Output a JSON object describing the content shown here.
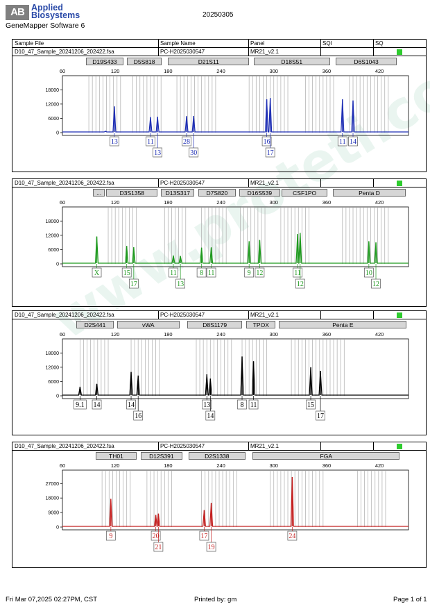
{
  "header": {
    "logo_mark": "AB",
    "logo_line1": "Applied",
    "logo_line2": "Biosystems",
    "software": "GeneMapper Software 6",
    "date": "20250305"
  },
  "columns": [
    "Sample File",
    "Sample Name",
    "Panel",
    "SQI",
    "SQ"
  ],
  "watermark": "www.proteti.com.cn",
  "footer": {
    "printed_at": "Fri Mar 07,2025 02:27PM, CST",
    "printed_by": "Printed by: gm",
    "page": "Page 1 of 1"
  },
  "colors": {
    "blue": "#1f2fb4",
    "green": "#1f9a1f",
    "black": "#000000",
    "red": "#c42020",
    "sq": "#2ecc2e"
  },
  "panels": [
    {
      "sample_file": "D10_47_Sample_20241206_202422.fsa",
      "sample_name": "PC-H2025030547",
      "panel": "MR21_v2.1",
      "color": "#1f2fb4",
      "show_sq": true,
      "markers": [
        {
          "name": "D19S433",
          "start": 87,
          "end": 129
        },
        {
          "name": "D5S818",
          "start": 133,
          "end": 173
        },
        {
          "name": "D21S11",
          "start": 180,
          "end": 272
        },
        {
          "name": "D18S51",
          "start": 277,
          "end": 364
        },
        {
          "name": "D6S1043",
          "start": 370,
          "end": 440
        }
      ],
      "chart_data": {
        "type": "line",
        "x_ticks": [
          60,
          120,
          180,
          240,
          300,
          360,
          420
        ],
        "y_ticks": [
          0,
          6000,
          12000,
          18000
        ],
        "ylim": [
          0,
          21000
        ],
        "xlim": [
          60,
          453
        ],
        "bins": [
          [
            90,
            94,
            98,
            102,
            106,
            110,
            114,
            118,
            122,
            126
          ],
          [
            140,
            144,
            148,
            152,
            156,
            160,
            164,
            168,
            172
          ],
          [
            190,
            194,
            198,
            202,
            206,
            210,
            214,
            218,
            222,
            226,
            230,
            234
          ],
          [
            272,
            276,
            280,
            284,
            288,
            292,
            296,
            300,
            304,
            308,
            312,
            316
          ],
          [
            336,
            340,
            344,
            348,
            352,
            356,
            360,
            364,
            368
          ],
          [
            386,
            390,
            394,
            398,
            402,
            406,
            410,
            414,
            418,
            422,
            426,
            430
          ]
        ],
        "peaks": [
          {
            "x": 119,
            "h": 11000
          },
          {
            "x": 109,
            "h": 600
          },
          {
            "x": 160,
            "h": 6500
          },
          {
            "x": 168,
            "h": 6700
          },
          {
            "x": 201,
            "h": 6900
          },
          {
            "x": 209,
            "h": 7000
          },
          {
            "x": 292,
            "h": 14000
          },
          {
            "x": 296,
            "h": 14500
          },
          {
            "x": 378,
            "h": 14000
          },
          {
            "x": 390,
            "h": 13500
          }
        ],
        "alleles": [
          {
            "x": 119,
            "row": 1,
            "label": "13"
          },
          {
            "x": 160,
            "row": 1,
            "label": "11"
          },
          {
            "x": 168,
            "row": 2,
            "label": "13"
          },
          {
            "x": 201,
            "row": 1,
            "label": "28"
          },
          {
            "x": 209,
            "row": 2,
            "label": "30"
          },
          {
            "x": 292,
            "row": 1,
            "label": "16"
          },
          {
            "x": 296,
            "row": 2,
            "label": "17"
          },
          {
            "x": 378,
            "row": 1,
            "label": "11"
          },
          {
            "x": 390,
            "row": 1,
            "label": "14"
          }
        ]
      }
    },
    {
      "sample_file": "D10_47_Sample_20241206_202422.fsa",
      "sample_name": "PC-H2025030547",
      "panel": "MR21_v2.1",
      "color": "#1f9a1f",
      "show_sq": true,
      "markers": [
        {
          "name": "...",
          "start": 95,
          "end": 108
        },
        {
          "name": "D3S1358",
          "start": 110,
          "end": 168
        },
        {
          "name": "D13S317",
          "start": 172,
          "end": 210
        },
        {
          "name": "D7S820",
          "start": 214,
          "end": 257
        },
        {
          "name": "D16S539",
          "start": 261,
          "end": 307
        },
        {
          "name": "CSF1PO",
          "start": 309,
          "end": 361
        },
        {
          "name": "Penta D",
          "start": 367,
          "end": 450
        }
      ],
      "chart_data": {
        "type": "line",
        "x_ticks": [
          60,
          120,
          180,
          240,
          300,
          360,
          420
        ],
        "y_ticks": [
          0,
          6000,
          12000,
          18000
        ],
        "ylim": [
          0,
          21000
        ],
        "xlim": [
          60,
          453
        ],
        "bins": [
          [
            112,
            116,
            120,
            124,
            128,
            132,
            136,
            140,
            144
          ],
          [
            176,
            180,
            184,
            188,
            192,
            196,
            200
          ],
          [
            218,
            222,
            226,
            230,
            234,
            238,
            242,
            246
          ],
          [
            262,
            266,
            270,
            274,
            278,
            282,
            286,
            290
          ],
          [
            308,
            312,
            316,
            320,
            324,
            328,
            332,
            336,
            340
          ],
          [
            378,
            382,
            386,
            390,
            394,
            398,
            402,
            406,
            410,
            414,
            418,
            422,
            426,
            430
          ]
        ],
        "peaks": [
          {
            "x": 99,
            "h": 11500
          },
          {
            "x": 133,
            "h": 7500
          },
          {
            "x": 141,
            "h": 7000
          },
          {
            "x": 186,
            "h": 3500
          },
          {
            "x": 194,
            "h": 3300
          },
          {
            "x": 218,
            "h": 6800
          },
          {
            "x": 229,
            "h": 6900
          },
          {
            "x": 272,
            "h": 9500
          },
          {
            "x": 284,
            "h": 10000
          },
          {
            "x": 327,
            "h": 12500
          },
          {
            "x": 330,
            "h": 13000
          },
          {
            "x": 408,
            "h": 9500
          },
          {
            "x": 416,
            "h": 9000
          }
        ],
        "alleles": [
          {
            "x": 99,
            "row": 1,
            "label": "X"
          },
          {
            "x": 133,
            "row": 1,
            "label": "15"
          },
          {
            "x": 141,
            "row": 2,
            "label": "17"
          },
          {
            "x": 186,
            "row": 1,
            "label": "11"
          },
          {
            "x": 194,
            "row": 2,
            "label": "13"
          },
          {
            "x": 218,
            "row": 1,
            "label": "8"
          },
          {
            "x": 229,
            "row": 1,
            "label": "11"
          },
          {
            "x": 272,
            "row": 1,
            "label": "9"
          },
          {
            "x": 284,
            "row": 1,
            "label": "12"
          },
          {
            "x": 327,
            "row": 1,
            "label": "11"
          },
          {
            "x": 330,
            "row": 2,
            "label": "12"
          },
          {
            "x": 408,
            "row": 1,
            "label": "10"
          },
          {
            "x": 416,
            "row": 2,
            "label": "12"
          }
        ]
      }
    },
    {
      "sample_file": "D10_47_Sample_20241206_202422.fsa",
      "sample_name": "PC-H2025030547",
      "panel": "MR21_v2.1",
      "color": "#000000",
      "show_sq": true,
      "markers": [
        {
          "name": "D2S441",
          "start": 76,
          "end": 118
        },
        {
          "name": "vWA",
          "start": 122,
          "end": 193
        },
        {
          "name": "D8S1179",
          "start": 202,
          "end": 264
        },
        {
          "name": "TPOX",
          "start": 269,
          "end": 302
        },
        {
          "name": "Penta E",
          "start": 306,
          "end": 451
        }
      ],
      "chart_data": {
        "type": "line",
        "x_ticks": [
          60,
          120,
          180,
          240,
          300,
          360,
          420
        ],
        "y_ticks": [
          0,
          6000,
          12000,
          18000
        ],
        "ylim": [
          0,
          21000
        ],
        "xlim": [
          60,
          453
        ],
        "bins": [
          [
            80,
            84,
            88,
            92,
            96,
            100,
            104,
            108,
            112
          ],
          [
            138,
            142,
            146,
            150,
            154,
            158,
            162,
            166,
            170
          ],
          [
            212,
            216,
            220,
            224,
            228,
            232,
            236,
            240,
            244,
            248,
            252
          ],
          [
            264,
            268,
            272,
            276,
            280,
            284,
            288,
            292
          ],
          [
            320,
            324,
            328,
            332,
            336,
            340,
            344,
            348,
            352,
            356,
            360,
            364,
            368,
            372,
            376,
            380
          ]
        ],
        "peaks": [
          {
            "x": 80,
            "h": 3800
          },
          {
            "x": 99,
            "h": 5000
          },
          {
            "x": 138,
            "h": 10000
          },
          {
            "x": 146,
            "h": 8500
          },
          {
            "x": 224,
            "h": 9000
          },
          {
            "x": 228,
            "h": 7200
          },
          {
            "x": 264,
            "h": 16500
          },
          {
            "x": 277,
            "h": 14500
          },
          {
            "x": 342,
            "h": 12000
          },
          {
            "x": 353,
            "h": 10500
          }
        ],
        "alleles": [
          {
            "x": 80,
            "row": 1,
            "label": "9.1"
          },
          {
            "x": 99,
            "row": 1,
            "label": "14"
          },
          {
            "x": 138,
            "row": 1,
            "label": "14"
          },
          {
            "x": 146,
            "row": 2,
            "label": "16"
          },
          {
            "x": 224,
            "row": 1,
            "label": "13"
          },
          {
            "x": 228,
            "row": 2,
            "label": "14"
          },
          {
            "x": 264,
            "row": 1,
            "label": "8"
          },
          {
            "x": 277,
            "row": 1,
            "label": "11"
          },
          {
            "x": 342,
            "row": 1,
            "label": "15"
          },
          {
            "x": 353,
            "row": 2,
            "label": "17"
          }
        ]
      }
    },
    {
      "sample_file": "D10_47_Sample_20241206_202422.fsa",
      "sample_name": "PC-H2025030547",
      "panel": "MR21_v2.1",
      "color": "#c42020",
      "show_sq": true,
      "markers": [
        {
          "name": "TH01",
          "start": 98,
          "end": 144
        },
        {
          "name": "D12S391",
          "start": 149,
          "end": 196
        },
        {
          "name": "D2S1338",
          "start": 203,
          "end": 268
        },
        {
          "name": "FGA",
          "start": 276,
          "end": 443
        }
      ],
      "chart_data": {
        "type": "line",
        "x_ticks": [
          60,
          120,
          180,
          240,
          300,
          360,
          420
        ],
        "y_ticks": [
          0,
          9000,
          18000,
          27000
        ],
        "ylim": [
          0,
          31000
        ],
        "xlim": [
          60,
          453
        ],
        "bins": [
          [
            105,
            109,
            113,
            117,
            121,
            125,
            129,
            133,
            137
          ],
          [
            156,
            160,
            164,
            168,
            172,
            176,
            180,
            184
          ],
          [
            218,
            222,
            226,
            230,
            234,
            238,
            242,
            246,
            250,
            254,
            258
          ],
          [
            296,
            300,
            304,
            308,
            312,
            316,
            320,
            324,
            328,
            332,
            336,
            340,
            344,
            348,
            352,
            356
          ],
          [
            395,
            399,
            403,
            407,
            411,
            415,
            419,
            423,
            427
          ]
        ],
        "peaks": [
          {
            "x": 115,
            "h": 17500
          },
          {
            "x": 166,
            "h": 7500
          },
          {
            "x": 169,
            "h": 8300
          },
          {
            "x": 221,
            "h": 10500
          },
          {
            "x": 229,
            "h": 15000
          },
          {
            "x": 321,
            "h": 42000
          }
        ],
        "alleles": [
          {
            "x": 115,
            "row": 1,
            "label": "9"
          },
          {
            "x": 166,
            "row": 1,
            "label": "20"
          },
          {
            "x": 169,
            "row": 2,
            "label": "21"
          },
          {
            "x": 221,
            "row": 1,
            "label": "17"
          },
          {
            "x": 229,
            "row": 2,
            "label": "19"
          },
          {
            "x": 321,
            "row": 1,
            "label": "24"
          }
        ]
      }
    }
  ]
}
